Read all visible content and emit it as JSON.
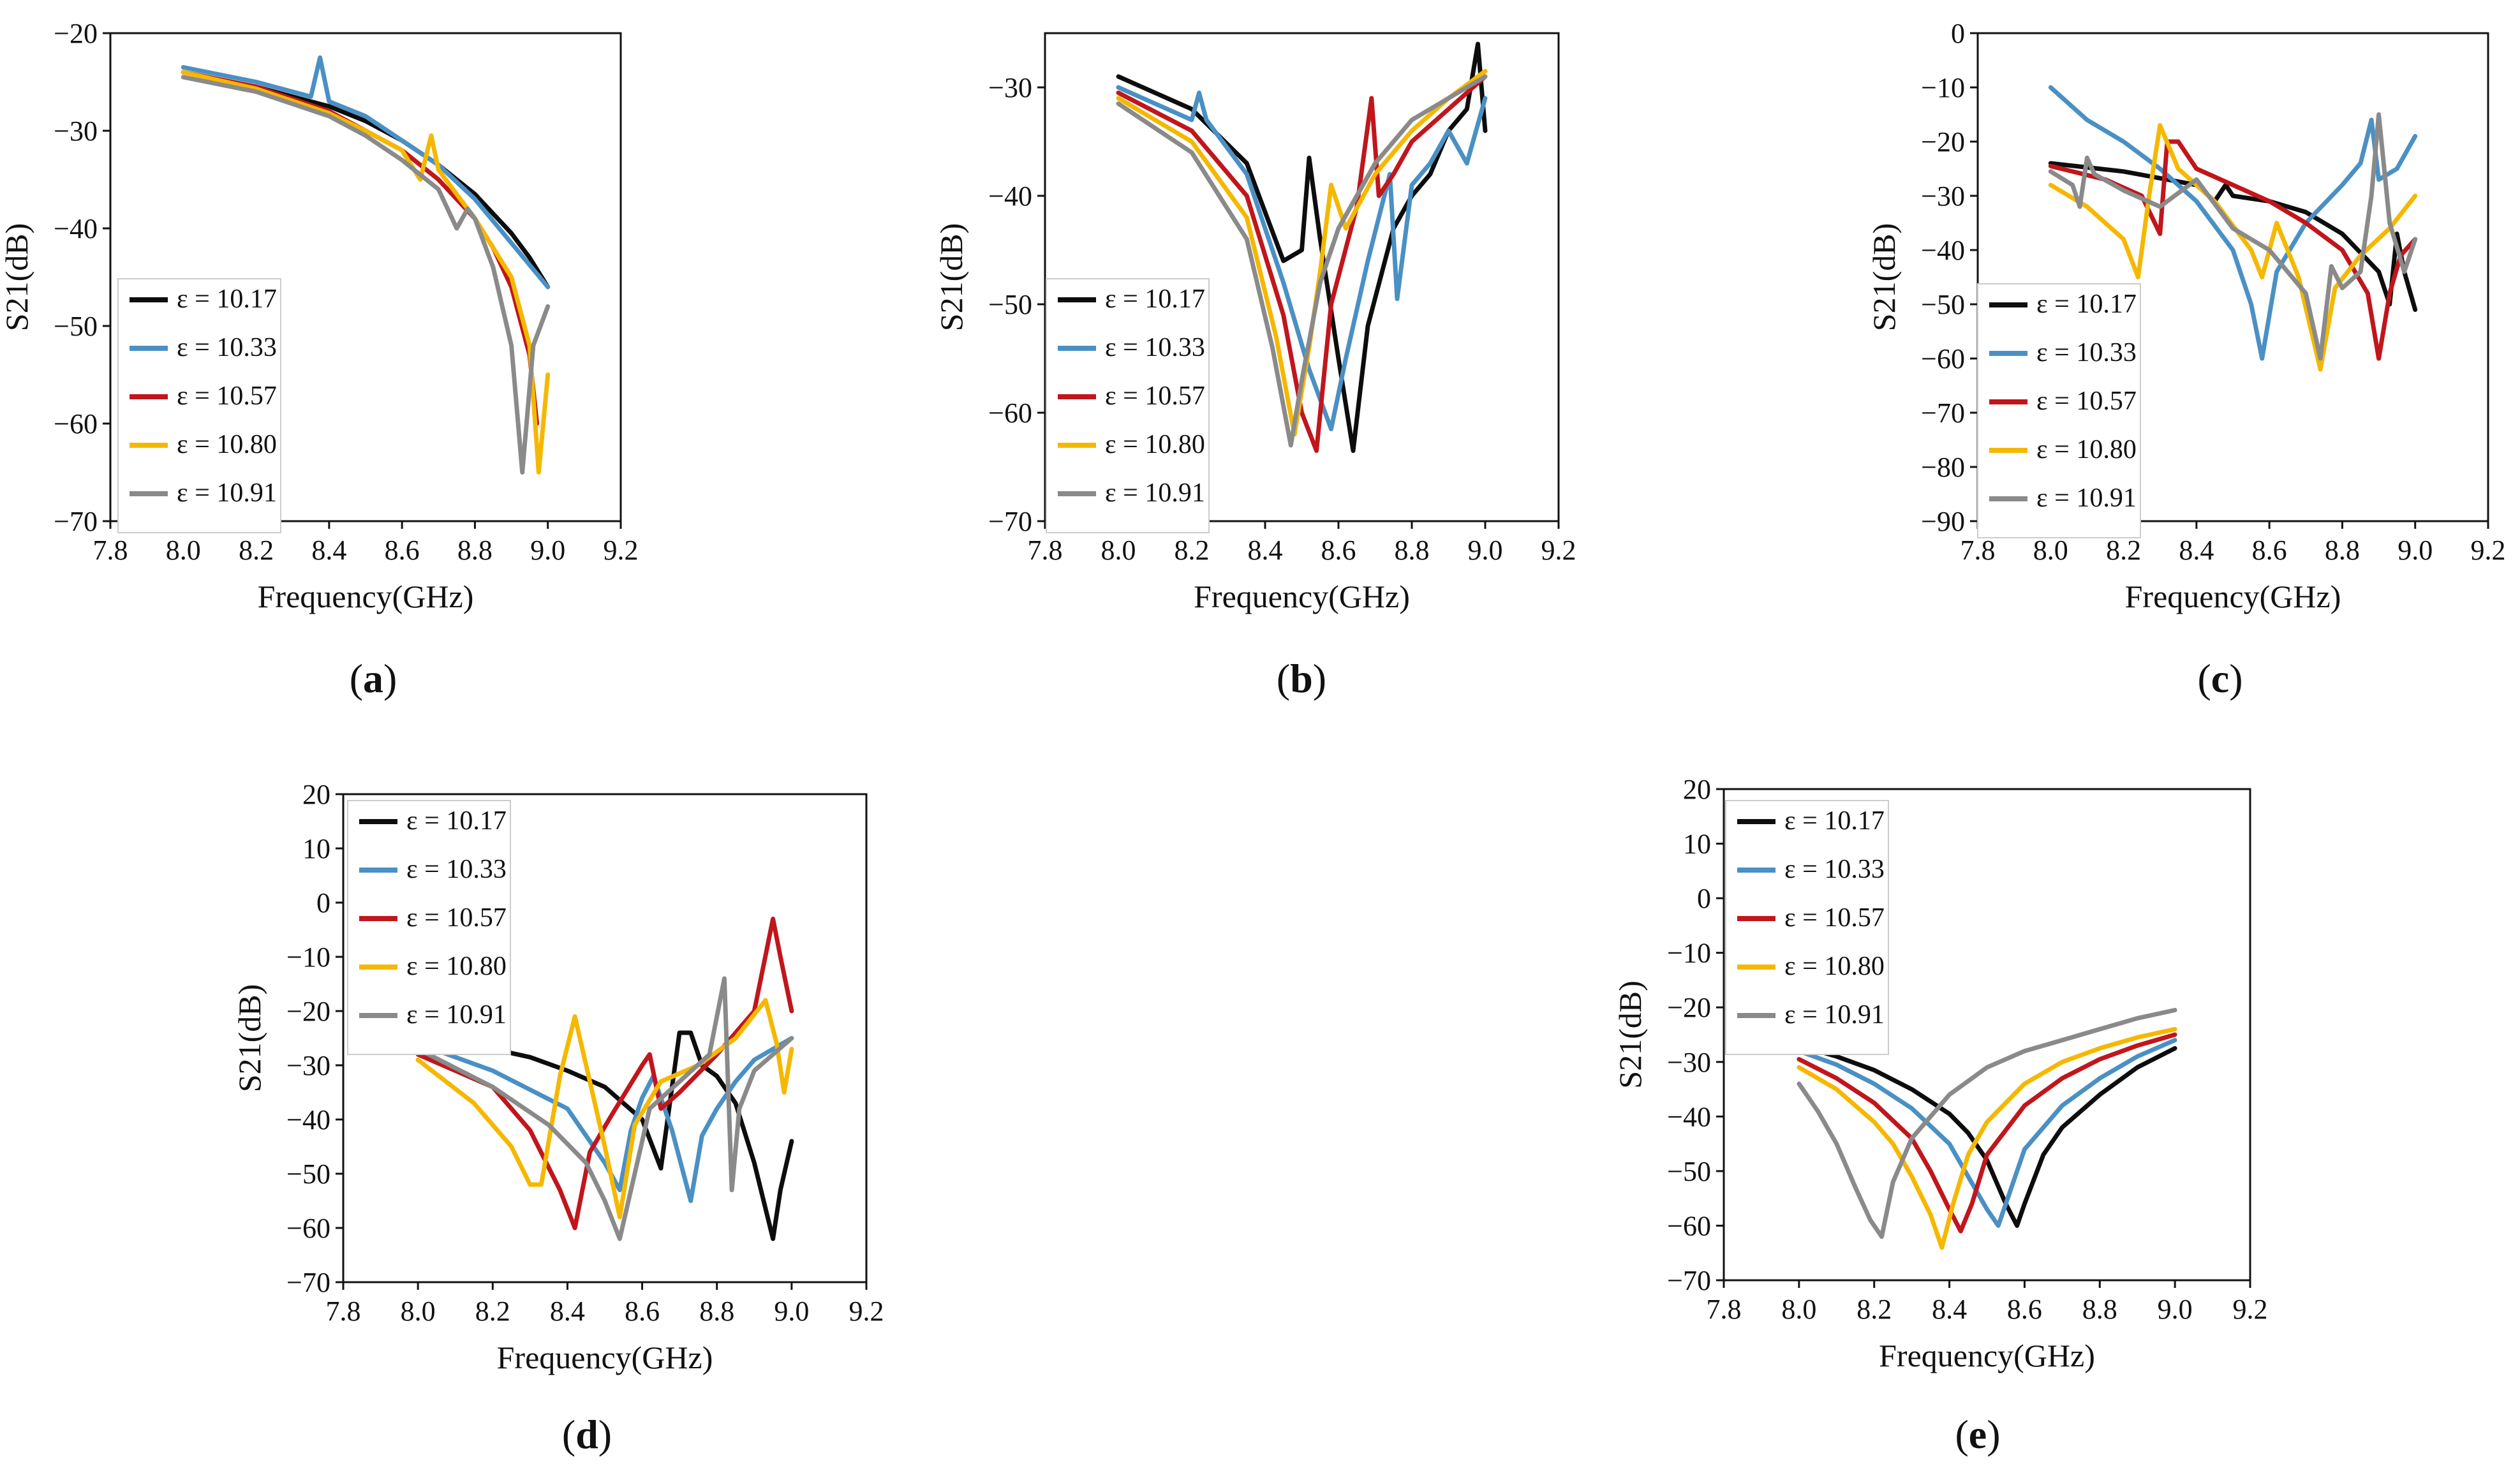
{
  "figure": {
    "legend_prefix": "ε = ",
    "colors": {
      "axis": "#111111",
      "text": "#111111"
    }
  },
  "series_colors": {
    "10.17": "#0d0d0d",
    "10.33": "#4a90c4",
    "10.57": "#c0161c",
    "10.80": "#f5b800",
    "10.91": "#8a8a8a"
  },
  "chart_data": [
    {
      "id": "a",
      "panel_label": "a",
      "type": "line",
      "xlabel": "Frequency(GHz)",
      "ylabel": "S21(dB)",
      "xlim": [
        7.8,
        9.2
      ],
      "ylim": [
        -70,
        -20
      ],
      "xticks": [
        "7.8",
        "8.0",
        "8.2",
        "8.4",
        "8.6",
        "8.8",
        "9.0",
        "9.2"
      ],
      "yticks": [
        "−70",
        "−60",
        "−50",
        "−40",
        "−30",
        "−20"
      ],
      "ytick_values": [
        -70,
        -60,
        -50,
        -40,
        -30,
        -20
      ],
      "legend_loc": "lower-left",
      "series": [
        {
          "name": "10.17",
          "x": [
            8.0,
            8.2,
            8.4,
            8.5,
            8.6,
            8.7,
            8.8,
            8.9,
            8.95,
            9.0
          ],
          "y": [
            -24,
            -25.5,
            -27.5,
            -29,
            -31,
            -33.5,
            -36.5,
            -40.5,
            -43,
            -46
          ]
        },
        {
          "name": "10.33",
          "x": [
            8.0,
            8.2,
            8.35,
            8.375,
            8.4,
            8.5,
            8.6,
            8.7,
            8.8,
            8.9,
            9.0
          ],
          "y": [
            -23.5,
            -25,
            -26.5,
            -22.5,
            -27,
            -28.5,
            -31,
            -33.5,
            -37,
            -41.5,
            -46
          ]
        },
        {
          "name": "10.57",
          "x": [
            8.0,
            8.2,
            8.4,
            8.5,
            8.6,
            8.7,
            8.8,
            8.85,
            8.9,
            8.95,
            8.97
          ],
          "y": [
            -24,
            -25.5,
            -28,
            -30,
            -32,
            -35,
            -39,
            -42,
            -46,
            -53,
            -60
          ]
        },
        {
          "name": "10.80",
          "x": [
            8.0,
            8.2,
            8.4,
            8.5,
            8.6,
            8.65,
            8.68,
            8.7,
            8.8,
            8.9,
            8.95,
            8.975,
            9.0
          ],
          "y": [
            -24,
            -25.7,
            -28.2,
            -30,
            -32,
            -35,
            -30.5,
            -34,
            -39,
            -45,
            -52,
            -65,
            -55
          ]
        },
        {
          "name": "10.91",
          "x": [
            8.0,
            8.2,
            8.4,
            8.5,
            8.6,
            8.7,
            8.75,
            8.78,
            8.8,
            8.85,
            8.9,
            8.93,
            8.96,
            9.0
          ],
          "y": [
            -24.5,
            -26,
            -28.5,
            -30.5,
            -33,
            -36,
            -40,
            -38,
            -39,
            -44,
            -52,
            -65,
            -52,
            -48
          ]
        }
      ]
    },
    {
      "id": "b",
      "panel_label": "b",
      "type": "line",
      "xlabel": "Frequency(GHz)",
      "ylabel": "S21(dB)",
      "xlim": [
        7.8,
        9.2
      ],
      "ylim": [
        -70,
        -25
      ],
      "xticks": [
        "7.8",
        "8.0",
        "8.2",
        "8.4",
        "8.6",
        "8.8",
        "9.0",
        "9.2"
      ],
      "yticks": [
        "−70",
        "−60",
        "−50",
        "−40",
        "−30"
      ],
      "ytick_values": [
        -70,
        -60,
        -50,
        -40,
        -30
      ],
      "legend_loc": "lower-left",
      "series": [
        {
          "name": "10.17",
          "x": [
            8.0,
            8.2,
            8.35,
            8.45,
            8.5,
            8.52,
            8.55,
            8.6,
            8.64,
            8.68,
            8.75,
            8.8,
            8.85,
            8.9,
            8.95,
            8.98,
            9.0
          ],
          "y": [
            -29,
            -32,
            -37,
            -46,
            -45,
            -36.5,
            -44,
            -55,
            -63.5,
            -52,
            -43,
            -40,
            -38,
            -34,
            -32,
            -26,
            -34
          ]
        },
        {
          "name": "10.33",
          "x": [
            8.0,
            8.2,
            8.22,
            8.24,
            8.35,
            8.45,
            8.52,
            8.58,
            8.62,
            8.68,
            8.74,
            8.76,
            8.8,
            8.85,
            8.9,
            8.95,
            9.0
          ],
          "y": [
            -30,
            -33,
            -30.5,
            -33,
            -38,
            -48,
            -56,
            -61.5,
            -55,
            -46,
            -38,
            -49.5,
            -39,
            -37,
            -34,
            -37,
            -31
          ]
        },
        {
          "name": "10.57",
          "x": [
            8.0,
            8.2,
            8.35,
            8.45,
            8.5,
            8.54,
            8.58,
            8.65,
            8.69,
            8.71,
            8.75,
            8.8,
            8.9,
            9.0
          ],
          "y": [
            -30.5,
            -34,
            -40,
            -51,
            -60,
            -63.5,
            -50,
            -41,
            -31,
            -40,
            -38,
            -35,
            -32,
            -29
          ]
        },
        {
          "name": "10.80",
          "x": [
            8.0,
            8.2,
            8.35,
            8.43,
            8.48,
            8.52,
            8.55,
            8.58,
            8.62,
            8.7,
            8.8,
            8.9,
            9.0
          ],
          "y": [
            -31,
            -35,
            -42,
            -53,
            -62,
            -54,
            -47,
            -39,
            -43,
            -38,
            -34,
            -31,
            -28.5
          ]
        },
        {
          "name": "10.91",
          "x": [
            8.0,
            8.2,
            8.35,
            8.42,
            8.47,
            8.5,
            8.55,
            8.6,
            8.7,
            8.8,
            8.9,
            9.0
          ],
          "y": [
            -31.5,
            -36,
            -44,
            -54,
            -63,
            -57,
            -48,
            -43,
            -37,
            -33,
            -31,
            -29
          ]
        }
      ]
    },
    {
      "id": "c",
      "panel_label": "c",
      "type": "line",
      "xlabel": "Frequency(GHz)",
      "ylabel": "S21(dB)",
      "xlim": [
        7.8,
        9.2
      ],
      "ylim": [
        -90,
        0
      ],
      "xticks": [
        "7.8",
        "8.0",
        "8.2",
        "8.4",
        "8.6",
        "8.8",
        "9.0",
        "9.2"
      ],
      "yticks": [
        "−90",
        "−80",
        "−70",
        "−60",
        "−50",
        "−40",
        "−30",
        "−20",
        "−10",
        "0"
      ],
      "ytick_values": [
        -90,
        -80,
        -70,
        -60,
        -50,
        -40,
        -30,
        -20,
        -10,
        0
      ],
      "legend_loc": "lower-left",
      "series": [
        {
          "name": "10.17",
          "x": [
            8.0,
            8.2,
            8.4,
            8.45,
            8.48,
            8.5,
            8.6,
            8.7,
            8.8,
            8.9,
            8.93,
            8.95,
            8.97,
            9.0
          ],
          "y": [
            -24,
            -25.5,
            -28,
            -31,
            -28,
            -30,
            -31,
            -33,
            -37,
            -44,
            -50,
            -37,
            -44,
            -51
          ]
        },
        {
          "name": "10.33",
          "x": [
            8.0,
            8.1,
            8.2,
            8.3,
            8.4,
            8.5,
            8.55,
            8.58,
            8.62,
            8.7,
            8.8,
            8.85,
            8.88,
            8.9,
            8.95,
            9.0
          ],
          "y": [
            -10,
            -16,
            -20,
            -25,
            -31,
            -40,
            -50,
            -60,
            -44,
            -35,
            -28,
            -24,
            -16,
            -27,
            -25,
            -19
          ]
        },
        {
          "name": "10.57",
          "x": [
            8.0,
            8.15,
            8.25,
            8.3,
            8.32,
            8.35,
            8.4,
            8.5,
            8.6,
            8.7,
            8.8,
            8.87,
            8.9,
            8.93,
            8.96,
            9.0
          ],
          "y": [
            -24.5,
            -27,
            -30,
            -37,
            -20,
            -20,
            -25,
            -28,
            -31,
            -35,
            -40,
            -48,
            -60,
            -48,
            -41,
            -38
          ]
        },
        {
          "name": "10.80",
          "x": [
            8.0,
            8.1,
            8.2,
            8.24,
            8.27,
            8.3,
            8.35,
            8.45,
            8.55,
            8.58,
            8.62,
            8.68,
            8.74,
            8.78,
            8.85,
            8.93,
            9.0
          ],
          "y": [
            -28,
            -32,
            -38,
            -45,
            -30,
            -17,
            -25,
            -31,
            -40,
            -45,
            -35,
            -45,
            -62,
            -47,
            -41,
            -36,
            -30
          ]
        },
        {
          "name": "10.91",
          "x": [
            8.0,
            8.06,
            8.08,
            8.1,
            8.12,
            8.2,
            8.3,
            8.4,
            8.5,
            8.6,
            8.7,
            8.74,
            8.77,
            8.8,
            8.85,
            8.88,
            8.9,
            8.93,
            8.97,
            9.0
          ],
          "y": [
            -25.5,
            -28,
            -32,
            -23,
            -26,
            -29,
            -32,
            -27,
            -36,
            -40,
            -48,
            -60,
            -43,
            -47,
            -44,
            -30,
            -15,
            -35,
            -44,
            -38
          ]
        }
      ]
    },
    {
      "id": "d",
      "panel_label": "d",
      "type": "line",
      "xlabel": "Frequency(GHz)",
      "ylabel": "S21(dB)",
      "xlim": [
        7.8,
        9.2
      ],
      "ylim": [
        -70,
        20
      ],
      "xticks": [
        "7.8",
        "8.0",
        "8.2",
        "8.4",
        "8.6",
        "8.8",
        "9.0",
        "9.2"
      ],
      "yticks": [
        "−70",
        "−60",
        "−50",
        "−40",
        "−30",
        "−20",
        "−10",
        "0",
        "10",
        "20"
      ],
      "ytick_values": [
        -70,
        -60,
        -50,
        -40,
        -30,
        -20,
        -10,
        0,
        10,
        20
      ],
      "legend_loc": "upper-left",
      "series": [
        {
          "name": "10.17",
          "x": [
            8.0,
            8.05,
            8.1,
            8.2,
            8.3,
            8.4,
            8.5,
            8.6,
            8.65,
            8.7,
            8.73,
            8.76,
            8.8,
            8.85,
            8.9,
            8.95,
            8.97,
            9.0
          ],
          "y": [
            -25,
            -26,
            -25.5,
            -27,
            -28.5,
            -31,
            -34,
            -40,
            -49,
            -24,
            -24,
            -30,
            -32,
            -37,
            -48,
            -62,
            -53,
            -44
          ]
        },
        {
          "name": "10.33",
          "x": [
            8.0,
            8.2,
            8.4,
            8.5,
            8.54,
            8.57,
            8.6,
            8.63,
            8.68,
            8.73,
            8.76,
            8.8,
            8.85,
            8.9,
            8.95,
            9.0
          ],
          "y": [
            -26,
            -31,
            -38,
            -48,
            -53,
            -42,
            -36,
            -32,
            -42,
            -55,
            -43,
            -38,
            -33,
            -29,
            -27,
            -25
          ]
        },
        {
          "name": "10.57",
          "x": [
            8.0,
            8.2,
            8.3,
            8.38,
            8.42,
            8.46,
            8.52,
            8.6,
            8.62,
            8.65,
            8.7,
            8.8,
            8.9,
            8.95,
            8.97,
            9.0
          ],
          "y": [
            -28,
            -34,
            -42,
            -53,
            -60,
            -46,
            -39,
            -30,
            -28,
            -38,
            -35,
            -28,
            -20,
            -3,
            -10,
            -20
          ]
        },
        {
          "name": "10.80",
          "x": [
            8.0,
            8.15,
            8.25,
            8.3,
            8.33,
            8.38,
            8.42,
            8.45,
            8.5,
            8.54,
            8.58,
            8.65,
            8.75,
            8.85,
            8.93,
            8.96,
            8.98,
            9.0
          ],
          "y": [
            -29,
            -37,
            -45,
            -52,
            -52,
            -32,
            -21,
            -30,
            -45,
            -58,
            -41,
            -33,
            -30,
            -25,
            -18,
            -26,
            -35,
            -27
          ]
        },
        {
          "name": "10.91",
          "x": [
            8.0,
            8.2,
            8.35,
            8.45,
            8.5,
            8.54,
            8.58,
            8.62,
            8.7,
            8.78,
            8.82,
            8.84,
            8.86,
            8.9,
            8.95,
            9.0
          ],
          "y": [
            -27,
            -34,
            -41,
            -48,
            -55,
            -62,
            -50,
            -38,
            -33,
            -28,
            -14,
            -53,
            -38,
            -31,
            -28,
            -25
          ]
        }
      ]
    },
    {
      "id": "e",
      "panel_label": "e",
      "type": "line",
      "xlabel": "Frequency(GHz)",
      "ylabel": "S21(dB)",
      "xlim": [
        7.8,
        9.2
      ],
      "ylim": [
        -70,
        20
      ],
      "xticks": [
        "7.8",
        "8.0",
        "8.2",
        "8.4",
        "8.6",
        "8.8",
        "9.0",
        "9.2"
      ],
      "yticks": [
        "−70",
        "−60",
        "−50",
        "−40",
        "−30",
        "−20",
        "−10",
        "0",
        "10",
        "20"
      ],
      "ytick_values": [
        -70,
        -60,
        -50,
        -40,
        -30,
        -20,
        -10,
        0,
        10,
        20
      ],
      "legend_loc": "upper-left",
      "series": [
        {
          "name": "10.17",
          "x": [
            8.0,
            8.1,
            8.2,
            8.3,
            8.4,
            8.45,
            8.5,
            8.55,
            8.58,
            8.6,
            8.65,
            8.7,
            8.8,
            8.9,
            9.0
          ],
          "y": [
            -27,
            -29,
            -31.5,
            -35,
            -39.5,
            -43,
            -48,
            -56,
            -60,
            -56,
            -47,
            -42,
            -36,
            -31,
            -27.5
          ]
        },
        {
          "name": "10.33",
          "x": [
            8.0,
            8.1,
            8.2,
            8.3,
            8.4,
            8.45,
            8.5,
            8.53,
            8.56,
            8.6,
            8.7,
            8.8,
            8.9,
            9.0
          ],
          "y": [
            -28,
            -30.5,
            -34,
            -38.5,
            -45,
            -51,
            -57,
            -60,
            -54,
            -46,
            -38,
            -33,
            -29,
            -26
          ]
        },
        {
          "name": "10.57",
          "x": [
            8.0,
            8.1,
            8.2,
            8.3,
            8.35,
            8.4,
            8.43,
            8.46,
            8.5,
            8.6,
            8.7,
            8.8,
            8.9,
            9.0
          ],
          "y": [
            -29.5,
            -33,
            -37.5,
            -44,
            -50,
            -57,
            -61,
            -56,
            -47,
            -38,
            -33,
            -29.5,
            -27,
            -25
          ]
        },
        {
          "name": "10.80",
          "x": [
            8.0,
            8.1,
            8.2,
            8.25,
            8.3,
            8.35,
            8.38,
            8.41,
            8.45,
            8.5,
            8.6,
            8.7,
            8.8,
            8.9,
            9.0
          ],
          "y": [
            -31,
            -35,
            -41,
            -45,
            -51,
            -58,
            -64,
            -56,
            -47,
            -41,
            -34,
            -30,
            -27.5,
            -25.5,
            -24
          ]
        },
        {
          "name": "10.91",
          "x": [
            8.0,
            8.05,
            8.1,
            8.15,
            8.19,
            8.22,
            8.25,
            8.3,
            8.4,
            8.5,
            8.6,
            8.7,
            8.8,
            8.9,
            9.0
          ],
          "y": [
            -34,
            -39,
            -45,
            -53,
            -59,
            -62,
            -52,
            -44,
            -36,
            -31,
            -28,
            -26,
            -24,
            -22,
            -20.5
          ]
        }
      ]
    }
  ]
}
